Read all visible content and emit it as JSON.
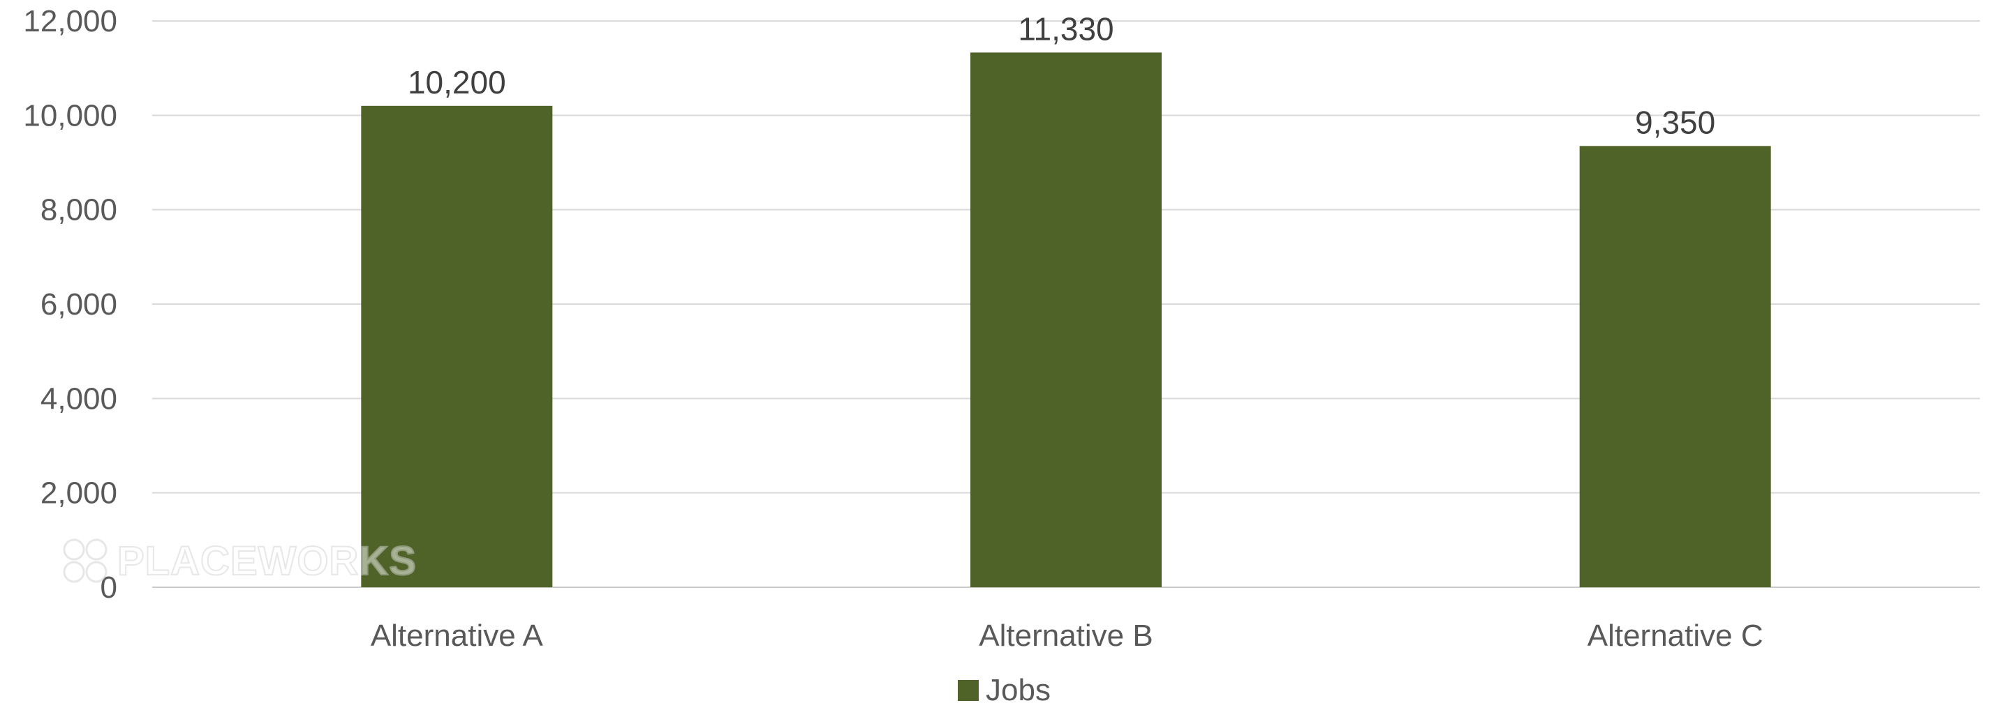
{
  "chart_data": {
    "type": "bar",
    "categories": [
      "Alternative A",
      "Alternative B",
      "Alternative C"
    ],
    "series": [
      {
        "name": "Jobs",
        "values": [
          10200,
          11330,
          9350
        ],
        "color": "#4f6228"
      }
    ],
    "data_labels": [
      "10,200",
      "11,330",
      "9,350"
    ],
    "y_ticks": [
      0,
      2000,
      4000,
      6000,
      8000,
      10000,
      12000
    ],
    "y_tick_labels": [
      "0",
      "2,000",
      "4,000",
      "6,000",
      "8,000",
      "10,000",
      "12,000"
    ],
    "ylim": [
      0,
      12000
    ],
    "grid": true,
    "legend_position": "bottom",
    "title": "",
    "xlabel": "",
    "ylabel": ""
  },
  "legend": {
    "label": "Jobs"
  },
  "watermark": {
    "text": "PLACEWORKS"
  }
}
